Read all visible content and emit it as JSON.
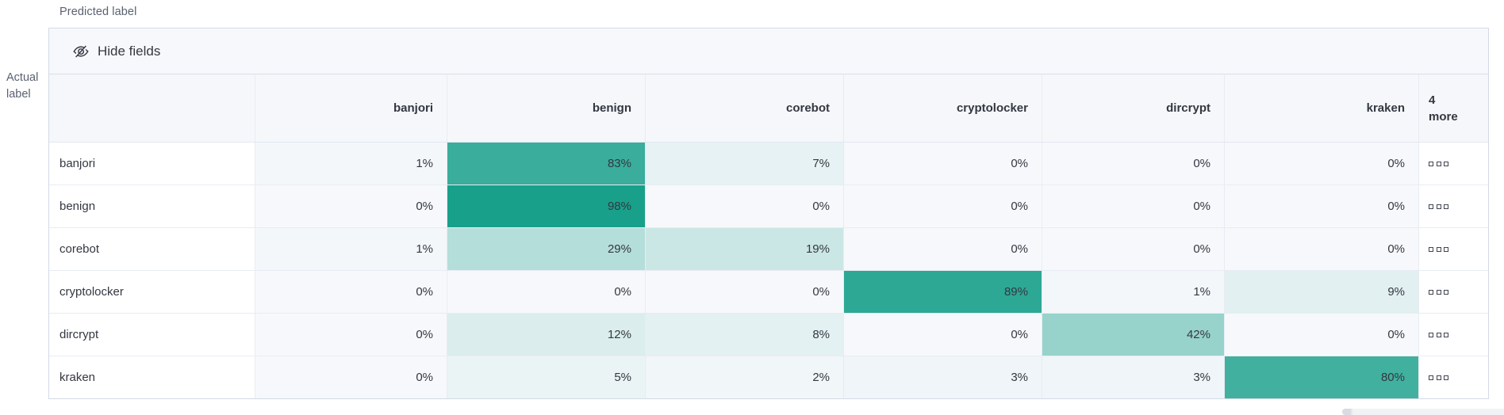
{
  "axes": {
    "predicted": "Predicted label",
    "actual_line1": "Actual",
    "actual_line2": "label"
  },
  "toolbar": {
    "hide_fields_label": "Hide fields",
    "icon": "eye-closed-icon"
  },
  "grid": {
    "columns": [
      "banjori",
      "benign",
      "corebot",
      "cryptolocker",
      "dircrypt",
      "kraken"
    ],
    "more_column": {
      "count": "4",
      "word": "more",
      "cell_icon": "three-squares-icon"
    },
    "value_suffix": "%",
    "rows": [
      {
        "label": "banjori",
        "values": [
          1,
          83,
          7,
          0,
          0,
          0
        ]
      },
      {
        "label": "benign",
        "values": [
          0,
          98,
          0,
          0,
          0,
          0
        ]
      },
      {
        "label": "corebot",
        "values": [
          1,
          29,
          19,
          0,
          0,
          0
        ]
      },
      {
        "label": "cryptolocker",
        "values": [
          0,
          0,
          0,
          89,
          1,
          9
        ]
      },
      {
        "label": "dircrypt",
        "values": [
          0,
          12,
          8,
          0,
          42,
          0
        ]
      },
      {
        "label": "kraken",
        "values": [
          0,
          5,
          2,
          3,
          3,
          80
        ]
      }
    ]
  },
  "colors": {
    "heat_base": "#F6F8FB",
    "heat_max": "#149E88",
    "panel_border": "#D3DAE6",
    "inner_border": "#E8ECF3",
    "header_bg": "#F5F7FA",
    "toolbar_bg": "#F7F8FC",
    "text": "#343741",
    "muted_text": "#5A6170"
  },
  "chart_data": {
    "type": "heatmap",
    "title": "Confusion matrix",
    "xlabel": "Predicted label",
    "ylabel": "Actual label",
    "x": [
      "banjori",
      "benign",
      "corebot",
      "cryptolocker",
      "dircrypt",
      "kraken"
    ],
    "y": [
      "banjori",
      "benign",
      "corebot",
      "cryptolocker",
      "dircrypt",
      "kraken"
    ],
    "values_percent": [
      [
        1,
        83,
        7,
        0,
        0,
        0
      ],
      [
        0,
        98,
        0,
        0,
        0,
        0
      ],
      [
        1,
        29,
        19,
        0,
        0,
        0
      ],
      [
        0,
        0,
        0,
        89,
        1,
        9
      ],
      [
        0,
        12,
        8,
        0,
        42,
        0
      ],
      [
        0,
        5,
        2,
        3,
        3,
        80
      ]
    ],
    "hidden_columns_note": "4 more",
    "color_scale": [
      "#F6F8FB",
      "#149E88"
    ],
    "legend": "off"
  }
}
